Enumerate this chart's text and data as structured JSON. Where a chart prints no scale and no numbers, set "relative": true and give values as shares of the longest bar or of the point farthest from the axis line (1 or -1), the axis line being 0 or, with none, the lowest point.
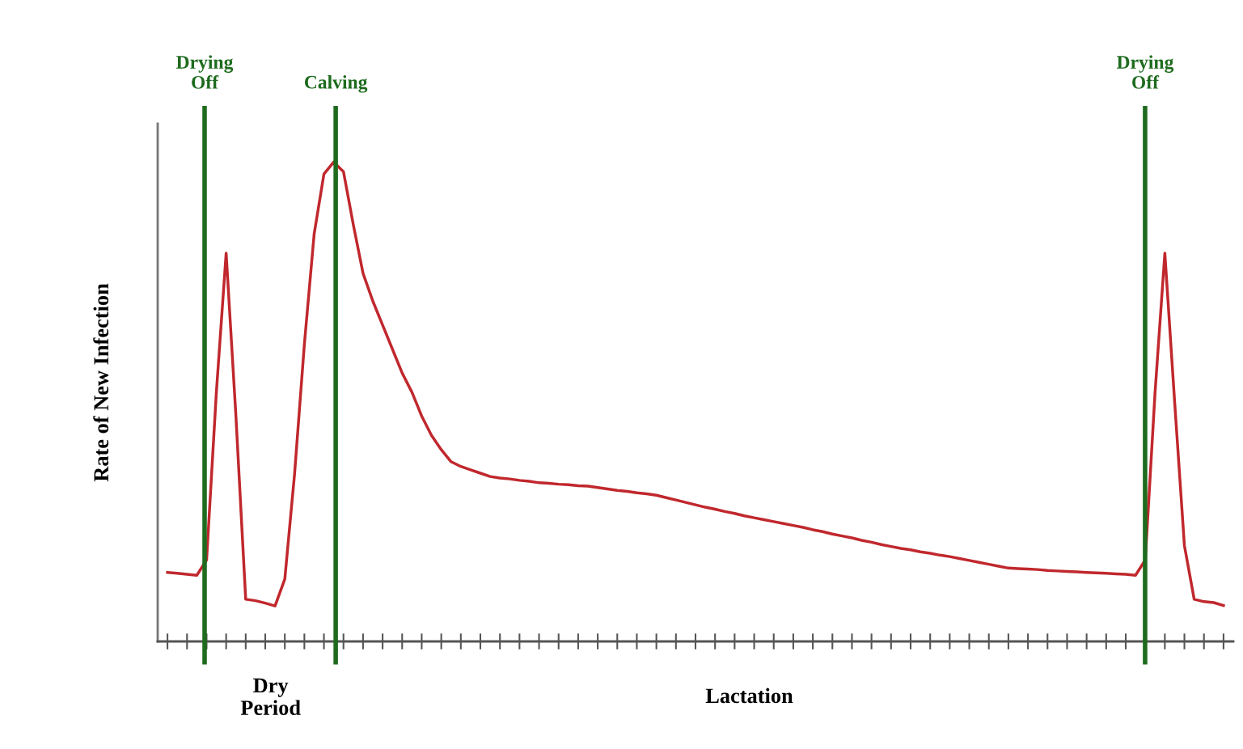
{
  "chart_data": {
    "type": "line",
    "relative": true,
    "ylabel": "Rate of New Infection",
    "categories": [
      null,
      null,
      null,
      null,
      null,
      null,
      null,
      null,
      null,
      null,
      null,
      null,
      null,
      null,
      null,
      null,
      null,
      null,
      null,
      null,
      null,
      null,
      null,
      null,
      null,
      null,
      null,
      null,
      null,
      null,
      null,
      null,
      null,
      null,
      null,
      null,
      null,
      null,
      null,
      null,
      null,
      null,
      null,
      null,
      null,
      null,
      null,
      null,
      null,
      null,
      null,
      null,
      null,
      null,
      null,
      null,
      null,
      null,
      null,
      null,
      null,
      null,
      null,
      null,
      null,
      null,
      null,
      null,
      null,
      null,
      null,
      null,
      null,
      null,
      null,
      null,
      null,
      null,
      null,
      null,
      null,
      null,
      null,
      null,
      null,
      null,
      null,
      null,
      null,
      null,
      null,
      null,
      null,
      null,
      null,
      null,
      null,
      null,
      null,
      null,
      null,
      null,
      null,
      null,
      null,
      null,
      null,
      null,
      null
    ],
    "series": [
      {
        "color": "#c0282d",
        "values": [
          0.144,
          0.142,
          0.14,
          0.138,
          0.17,
          0.52,
          0.81,
          0.47,
          0.088,
          0.085,
          0.08,
          0.074,
          0.13,
          0.35,
          0.62,
          0.85,
          0.975,
          1.0,
          0.98,
          0.87,
          0.768,
          0.71,
          0.66,
          0.61,
          0.56,
          0.52,
          0.47,
          0.43,
          0.4,
          0.375,
          0.365,
          0.358,
          0.351,
          0.344,
          0.341,
          0.339,
          0.336,
          0.334,
          0.331,
          0.33,
          0.328,
          0.327,
          0.325,
          0.324,
          0.321,
          0.318,
          0.315,
          0.313,
          0.31,
          0.308,
          0.305,
          0.3,
          0.295,
          0.29,
          0.285,
          0.28,
          0.276,
          0.271,
          0.267,
          0.262,
          0.258,
          0.254,
          0.25,
          0.246,
          0.242,
          0.238,
          0.233,
          0.229,
          0.224,
          0.22,
          0.216,
          0.211,
          0.207,
          0.202,
          0.198,
          0.194,
          0.191,
          0.187,
          0.184,
          0.18,
          0.177,
          0.173,
          0.169,
          0.165,
          0.161,
          0.157,
          0.153,
          0.152,
          0.151,
          0.15,
          0.148,
          0.147,
          0.146,
          0.145,
          0.144,
          0.143,
          0.142,
          0.141,
          0.14,
          0.138,
          0.17,
          0.52,
          0.81,
          0.5,
          0.2,
          0.088,
          0.083,
          0.081,
          0.075
        ]
      }
    ],
    "annotations": [
      "Drying\nOff",
      "Calving",
      "Drying\nOff",
      "Dry\nPeriod",
      "Lactation"
    ],
    "grid": false,
    "marker": "none",
    "line_style": "solid"
  }
}
